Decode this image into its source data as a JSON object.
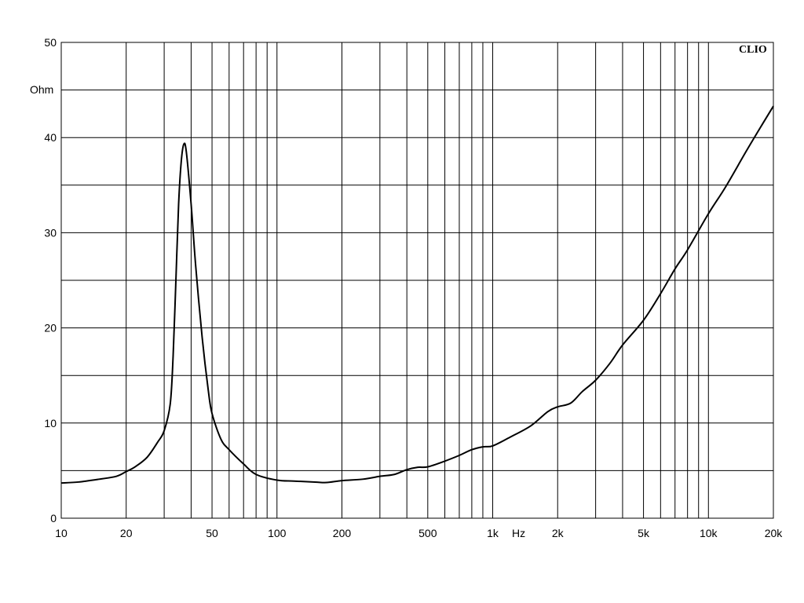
{
  "chart_data": {
    "type": "line",
    "title": "",
    "watermark": "CLIO",
    "xlabel": "Hz",
    "ylabel": "Ohm",
    "x_scale": "log",
    "xlim": [
      10,
      20000
    ],
    "ylim": [
      0,
      50
    ],
    "grid": true,
    "x_tick_labels": [
      {
        "value": 10,
        "label": "10"
      },
      {
        "value": 20,
        "label": "20"
      },
      {
        "value": 50,
        "label": "50"
      },
      {
        "value": 100,
        "label": "100"
      },
      {
        "value": 200,
        "label": "200"
      },
      {
        "value": 500,
        "label": "500"
      },
      {
        "value": 1000,
        "label": "1k"
      },
      {
        "value": 2000,
        "label": "2k"
      },
      {
        "value": 5000,
        "label": "5k"
      },
      {
        "value": 10000,
        "label": "10k"
      },
      {
        "value": 20000,
        "label": "20k"
      }
    ],
    "y_tick_labels": [
      {
        "value": 0,
        "label": "0"
      },
      {
        "value": 10,
        "label": "10"
      },
      {
        "value": 20,
        "label": "20"
      },
      {
        "value": 30,
        "label": "30"
      },
      {
        "value": 40,
        "label": "40"
      },
      {
        "value": 50,
        "label": "50"
      }
    ],
    "x_gridlines": [
      10,
      20,
      30,
      40,
      50,
      60,
      70,
      80,
      90,
      100,
      200,
      300,
      400,
      500,
      600,
      700,
      800,
      900,
      1000,
      2000,
      3000,
      4000,
      5000,
      6000,
      7000,
      8000,
      9000,
      10000,
      20000
    ],
    "y_gridlines": [
      0,
      5,
      10,
      15,
      20,
      25,
      30,
      35,
      40,
      45,
      50
    ],
    "series": [
      {
        "color": "#000000",
        "points": [
          [
            10,
            3.7
          ],
          [
            12,
            3.8
          ],
          [
            15,
            4.1
          ],
          [
            18,
            4.4
          ],
          [
            20,
            4.9
          ],
          [
            22,
            5.4
          ],
          [
            25,
            6.4
          ],
          [
            28,
            8.0
          ],
          [
            30,
            9.2
          ],
          [
            32,
            12.0
          ],
          [
            33,
            17.0
          ],
          [
            34,
            25.0
          ],
          [
            35,
            33.0
          ],
          [
            36,
            37.5
          ],
          [
            37,
            39.3
          ],
          [
            38,
            38.5
          ],
          [
            40,
            33.0
          ],
          [
            42,
            26.5
          ],
          [
            45,
            19.0
          ],
          [
            48,
            13.5
          ],
          [
            50,
            11.0
          ],
          [
            55,
            8.3
          ],
          [
            60,
            7.2
          ],
          [
            70,
            5.7
          ],
          [
            80,
            4.6
          ],
          [
            100,
            4.0
          ],
          [
            120,
            3.9
          ],
          [
            150,
            3.8
          ],
          [
            170,
            3.75
          ],
          [
            200,
            3.95
          ],
          [
            250,
            4.1
          ],
          [
            300,
            4.4
          ],
          [
            350,
            4.6
          ],
          [
            400,
            5.1
          ],
          [
            450,
            5.35
          ],
          [
            500,
            5.4
          ],
          [
            600,
            6.0
          ],
          [
            700,
            6.6
          ],
          [
            800,
            7.2
          ],
          [
            900,
            7.5
          ],
          [
            1000,
            7.6
          ],
          [
            1200,
            8.5
          ],
          [
            1500,
            9.7
          ],
          [
            1800,
            11.2
          ],
          [
            2000,
            11.7
          ],
          [
            2300,
            12.1
          ],
          [
            2600,
            13.3
          ],
          [
            3000,
            14.5
          ],
          [
            3500,
            16.3
          ],
          [
            4000,
            18.2
          ],
          [
            5000,
            20.8
          ],
          [
            6000,
            23.6
          ],
          [
            7000,
            26.2
          ],
          [
            8000,
            28.2
          ],
          [
            10000,
            32.0
          ],
          [
            12000,
            34.8
          ],
          [
            15000,
            38.6
          ],
          [
            18000,
            41.6
          ],
          [
            20000,
            43.3
          ]
        ]
      }
    ]
  }
}
